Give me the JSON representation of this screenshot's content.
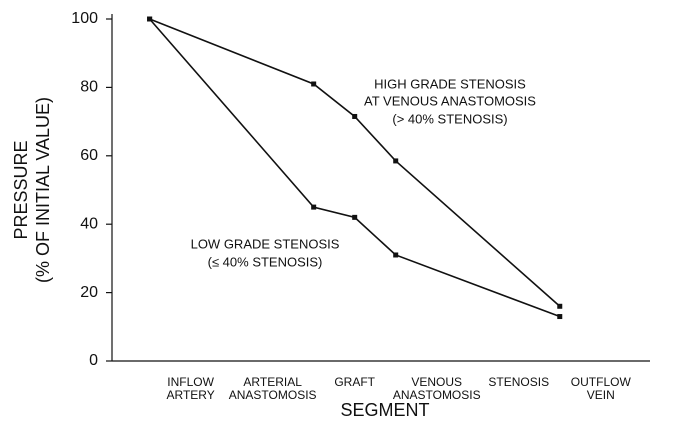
{
  "chart_data": {
    "type": "line",
    "y_label": [
      "PRESSURE",
      "(% OF INITIAL VALUE)"
    ],
    "x_label": "SEGMENT",
    "x": [
      0.5,
      2.5,
      3,
      3.5,
      5.5
    ],
    "series": [
      {
        "color": "#111111",
        "values": [
          100,
          81,
          71.5,
          58.5,
          16
        ]
      },
      {
        "color": "#111111",
        "values": [
          100,
          45,
          42,
          31,
          13
        ]
      }
    ],
    "annotations": [
      "HIGH GRADE STENOSIS",
      "AT VENOUS ANASTOMOSIS",
      "(> 40% STENOSIS)",
      "LOW GRADE STENOSIS",
      "(≤ 40% STENOSIS)"
    ],
    "xlim": [
      0,
      6.6
    ],
    "xticks": [
      {
        "value": 1,
        "label": "INFLOW ARTERY"
      },
      {
        "value": 2,
        "label": "ARTERIAL ANASTOMOSIS"
      },
      {
        "value": 3,
        "label": "GRAFT"
      },
      {
        "value": 4,
        "label": "VENOUS ANASTOMOSIS"
      },
      {
        "value": 5,
        "label": "STENOSIS"
      },
      {
        "value": 6,
        "label": "OUTFLOW VEIN"
      }
    ],
    "ylim": [
      0,
      100
    ],
    "yticks": [
      0,
      20,
      40,
      60,
      80,
      100
    ]
  }
}
